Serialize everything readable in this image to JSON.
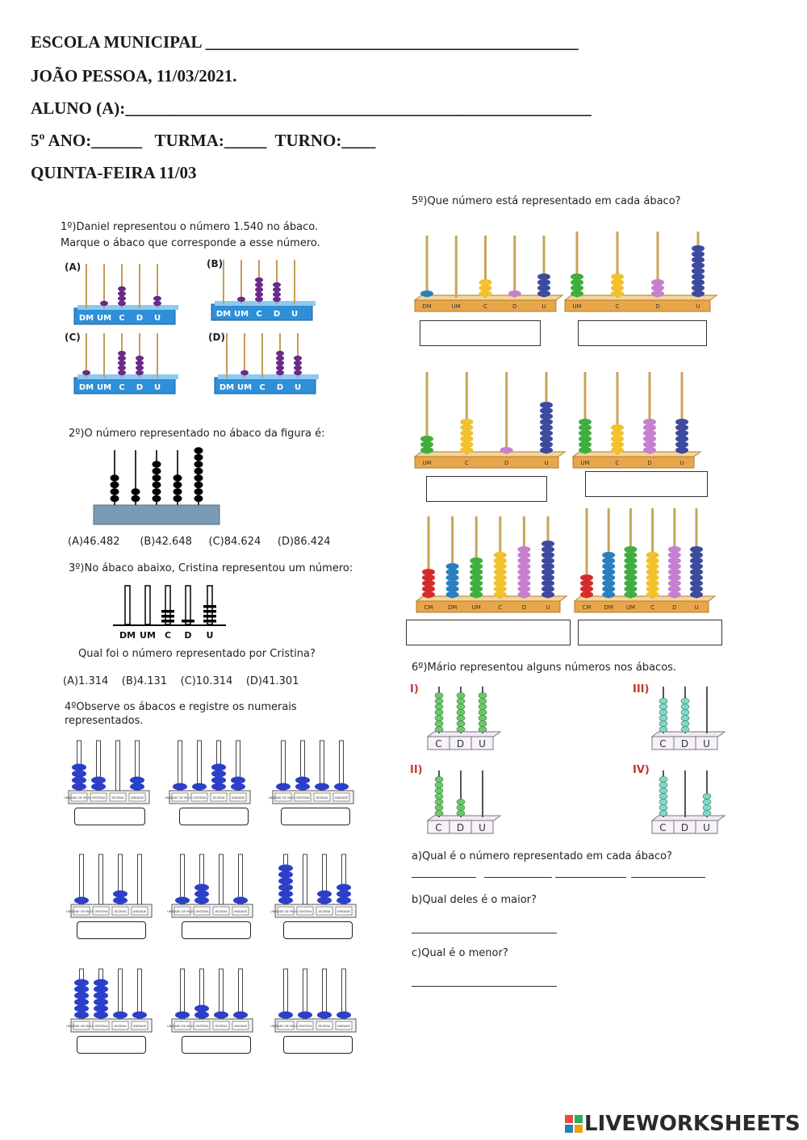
{
  "header": {
    "school": "ESCOLA MUNICIPAL ____________________________________________",
    "date": "JOÃO PESSOA, 11/03/2021.",
    "student": "ALUNO (A):_______________________________________________________",
    "grade": "5º ANO:______   TURMA:_____  TURNO:____",
    "day": "QUINTA-FEIRA 11/03"
  },
  "q1": {
    "text1": "1º)Daniel representou o número 1.540 no ábaco.",
    "text2": "Marque o ábaco que corresponde a esse número.",
    "options": [
      "(A)",
      "(B)",
      "(C)",
      "(D)"
    ],
    "base_labels": [
      "DM",
      "UM",
      "C",
      "D",
      "U"
    ]
  },
  "q2": {
    "text": "2º)O número representado no ábaco da figura é:",
    "options": "(A)46.482      (B)42.648     (C)84.624     (D)86.424"
  },
  "q3": {
    "text": "3º)No ábaco abaixo, Cristina representou um número:",
    "base_labels": [
      "DM",
      "UM",
      "C",
      "D",
      "U"
    ],
    "question": "Qual foi o número representado por Cristina?",
    "options": "(A)1.314    (B)4.131    (C)10.314    (D)41.301"
  },
  "q4": {
    "text1": "4ºObserve os ábacos e registre os numerais",
    "text2": "representados.",
    "base_labels": [
      "UNIDADE DE MILHAR",
      "CENTENA",
      "DEZENA",
      "UNIDADE"
    ]
  },
  "q5": {
    "text": "5º)Que número está representado em cada ábaco?",
    "labels4": [
      "DM",
      "UM",
      "C",
      "D",
      "U"
    ],
    "labels3": [
      "UM",
      "C",
      "D",
      "U"
    ],
    "labels6": [
      "CM",
      "DM",
      "UM",
      "C",
      "D",
      "U"
    ]
  },
  "q6": {
    "text": "6º)Mário representou alguns números nos ábacos.",
    "numerals": [
      "I)",
      "II)",
      "III)",
      "IV)"
    ],
    "base_labels": [
      "C",
      "D",
      "U"
    ],
    "a": "a)Qual é o número representado em cada ábaco?",
    "b": "b)Qual deles é o maior?",
    "c": "c)Qual é o menor?"
  },
  "brand": "LIVEWORKSHEETS",
  "colors": {
    "purple": "#6a2a8a",
    "blue": "#2b3fc8",
    "wood": "#e8a64a",
    "teal": "#7fd8d0",
    "green": "#6bc86b",
    "base_blue": "#2f8fd8"
  }
}
